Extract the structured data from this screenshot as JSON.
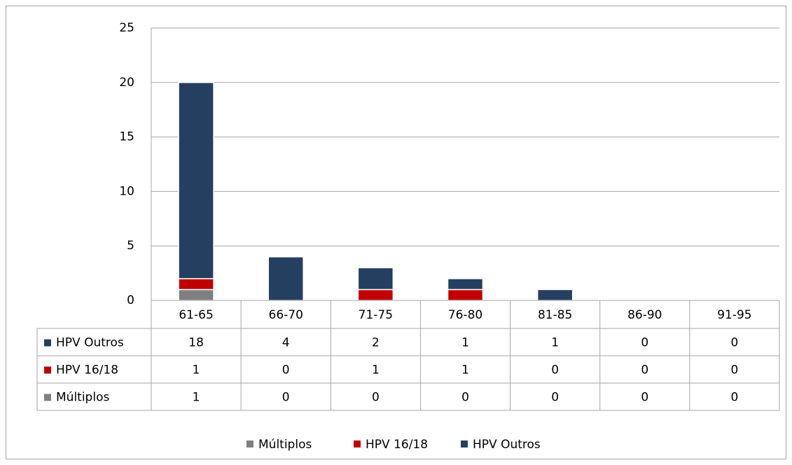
{
  "chart_data": {
    "type": "stacked_bar",
    "categories": [
      "61-65",
      "66-70",
      "71-75",
      "76-80",
      "81-85",
      "86-90",
      "91-95"
    ],
    "series": [
      {
        "name": "Múltiplos",
        "color": "#7f7f7f",
        "values": [
          1,
          0,
          0,
          0,
          0,
          0,
          0
        ]
      },
      {
        "name": "HPV 16/18",
        "color": "#c00000",
        "values": [
          1,
          0,
          1,
          1,
          0,
          0,
          0
        ]
      },
      {
        "name": "HPV Outros",
        "color": "#243f60",
        "values": [
          18,
          4,
          2,
          1,
          1,
          0,
          0
        ]
      }
    ],
    "ylim": [
      0,
      25
    ],
    "yticks": [
      0,
      5,
      10,
      15,
      20,
      25
    ],
    "grid": true,
    "legend": "bottom",
    "data_table": true
  }
}
